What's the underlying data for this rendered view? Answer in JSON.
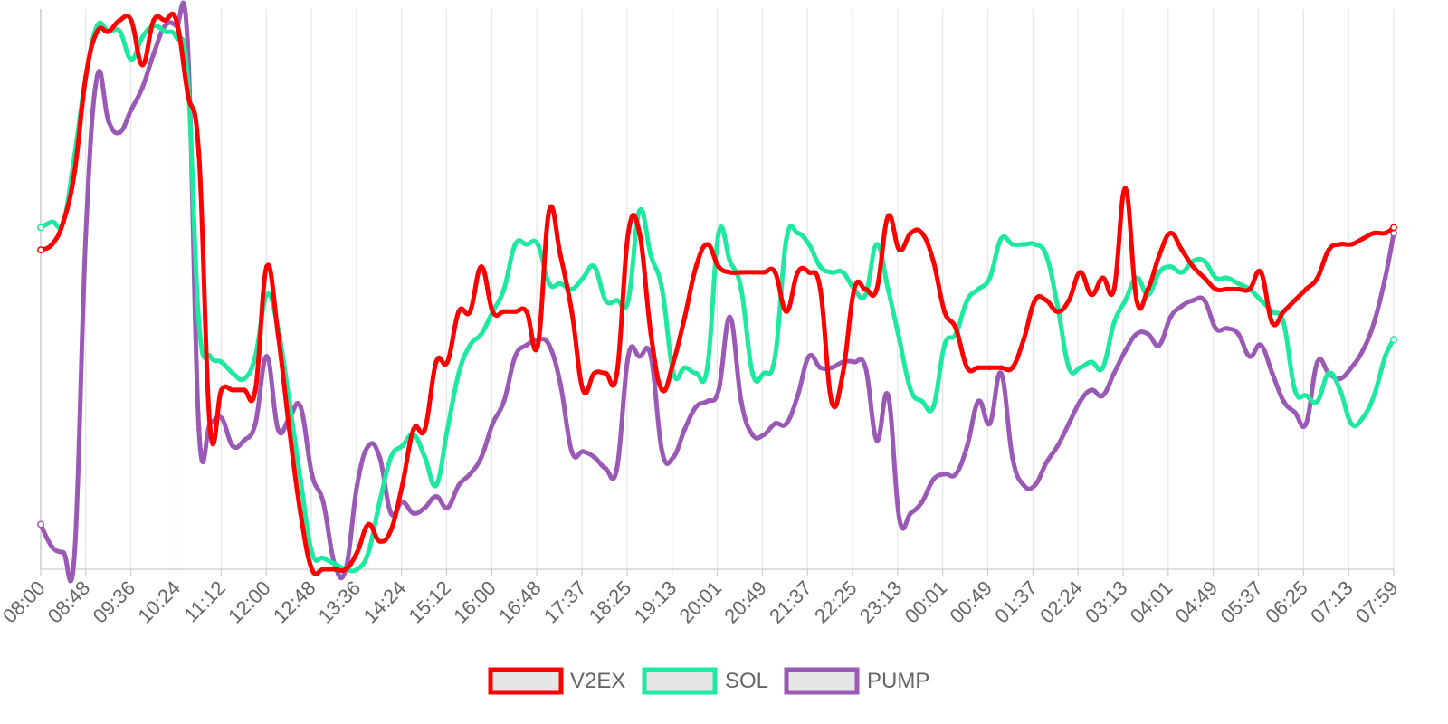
{
  "chart_data": {
    "type": "line",
    "title": "",
    "xlabel": "",
    "ylabel": "",
    "y_axis_labels_shown": false,
    "grid": "vertical",
    "legend_position": "bottom-center",
    "categories": [
      "08:00",
      "08:48",
      "09:36",
      "10:24",
      "11:12",
      "12:00",
      "12:48",
      "13:36",
      "14:24",
      "15:12",
      "16:00",
      "16:48",
      "17:37",
      "18:25",
      "19:13",
      "20:01",
      "20:49",
      "21:37",
      "22:25",
      "23:13",
      "00:01",
      "00:49",
      "01:37",
      "02:24",
      "03:13",
      "04:01",
      "04:49",
      "05:37",
      "06:25",
      "07:13",
      "07:59"
    ],
    "x": [
      0,
      4,
      8,
      12,
      16,
      20,
      24,
      28,
      32,
      36,
      40,
      44,
      48,
      52,
      56,
      60,
      64,
      68,
      72,
      76,
      80,
      84,
      88,
      92,
      96,
      100,
      104,
      108,
      112,
      116,
      120,
      124,
      128,
      132,
      136,
      140,
      144,
      148,
      152,
      156,
      160,
      164,
      168,
      172,
      176,
      180,
      184,
      188,
      192,
      196,
      200,
      204,
      208,
      212,
      216,
      220,
      224,
      228,
      232,
      236,
      240,
      244,
      248,
      252,
      256,
      260,
      264,
      268,
      272,
      276,
      280,
      284,
      288,
      292,
      296,
      300,
      304,
      308,
      312,
      316,
      320,
      324,
      328,
      332,
      336,
      340,
      344,
      348,
      352,
      356,
      360,
      364,
      368,
      372,
      376,
      380,
      384,
      388,
      392,
      396,
      400,
      404,
      408,
      412,
      416,
      420,
      424,
      428,
      432,
      436,
      440,
      444,
      448,
      452,
      456,
      460,
      464,
      468,
      472,
      476,
      479
    ],
    "ylim": [
      0,
      100
    ],
    "series": [
      {
        "name": "V2EX",
        "color": "#ff0000",
        "values": [
          57,
          58,
          62,
          71,
          88,
          96,
          96,
          98,
          98,
          90,
          98,
          98,
          98,
          85,
          74,
          25,
          32,
          32,
          32,
          32,
          54,
          42,
          25,
          10,
          0,
          0,
          0,
          0,
          3,
          8,
          5,
          7,
          15,
          25,
          25,
          37,
          37,
          46,
          46,
          54,
          46,
          46,
          46,
          46,
          40,
          64,
          56,
          46,
          32,
          35,
          35,
          35,
          60,
          60,
          42,
          32,
          37,
          45,
          54,
          58,
          54,
          53,
          53,
          53,
          53,
          53,
          46,
          53,
          53,
          50,
          30,
          35,
          50,
          50,
          50,
          63,
          57,
          60,
          60,
          55,
          46,
          43,
          36,
          36,
          36,
          36,
          36,
          41,
          48,
          48,
          46,
          48,
          53,
          49,
          52,
          50,
          68,
          48,
          50,
          56,
          60,
          57,
          54,
          52,
          50,
          50,
          50,
          50,
          53,
          44,
          46,
          48,
          50,
          52,
          57,
          58,
          58,
          59,
          60,
          60,
          61
        ]
      },
      {
        "name": "SOL",
        "color": "#1de9a0",
        "values": [
          61,
          62,
          62,
          74,
          88,
          97,
          96,
          96,
          91,
          95,
          97,
          96,
          95,
          88,
          44,
          38,
          37,
          35,
          34,
          38,
          49,
          43,
          30,
          16,
          3,
          2,
          1,
          0,
          0,
          3,
          12,
          20,
          22,
          24,
          20,
          15,
          25,
          35,
          40,
          42,
          46,
          50,
          58,
          58,
          58,
          51,
          51,
          50,
          52,
          54,
          48,
          48,
          48,
          64,
          56,
          50,
          35,
          36,
          35,
          36,
          60,
          55,
          50,
          35,
          35,
          38,
          59,
          60,
          58,
          54,
          53,
          53,
          50,
          49,
          58,
          50,
          41,
          32,
          30,
          29,
          40,
          42,
          48,
          50,
          52,
          59,
          58,
          58,
          58,
          56,
          47,
          36,
          36,
          37,
          36,
          44,
          48,
          52,
          49,
          53,
          54,
          53,
          55,
          55,
          52,
          52,
          51,
          50,
          48,
          46,
          44,
          32,
          31,
          30,
          35,
          32,
          26,
          27,
          31,
          38,
          41
        ]
      },
      {
        "name": "PUMP",
        "color": "#9b59b6",
        "values": [
          8,
          4,
          3,
          3,
          60,
          88,
          80,
          78,
          82,
          86,
          92,
          97,
          97,
          94,
          25,
          26,
          27,
          22,
          23,
          26,
          38,
          25,
          27,
          29,
          17,
          12,
          1,
          0,
          15,
          22,
          20,
          10,
          12,
          10,
          11,
          13,
          11,
          15,
          17,
          20,
          26,
          30,
          38,
          40,
          41,
          40,
          33,
          21,
          21,
          20,
          18,
          18,
          38,
          38,
          38,
          21,
          20,
          25,
          29,
          30,
          32,
          45,
          30,
          24,
          24,
          26,
          26,
          31,
          38,
          36,
          36,
          37,
          37,
          36,
          23,
          31,
          9,
          10,
          12,
          16,
          17,
          17,
          22,
          30,
          26,
          35,
          20,
          15,
          15,
          19,
          22,
          26,
          30,
          32,
          31,
          35,
          39,
          42,
          42,
          40,
          45,
          47,
          48,
          48,
          43,
          43,
          42,
          38,
          40,
          35,
          30,
          28,
          26,
          37,
          35,
          34,
          36,
          39,
          44,
          52,
          60
        ]
      }
    ]
  }
}
